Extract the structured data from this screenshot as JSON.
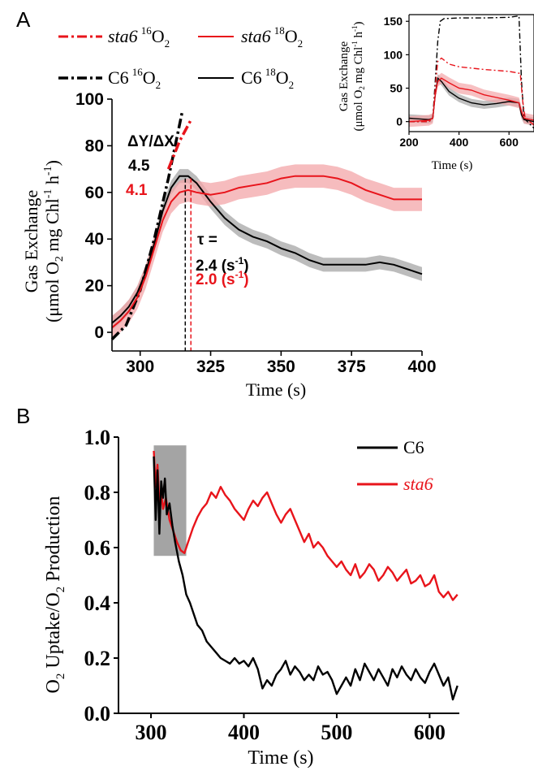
{
  "panels": {
    "a_letter": "A",
    "b_letter": "B"
  },
  "colors": {
    "c6": "#000000",
    "sta6": "#e8141b",
    "sta6_band": "#f3a5a8",
    "c6_band": "#a6a6a6",
    "shade_box": "#9a9a9a"
  },
  "legend_a": {
    "sta6_16_name": "sta6",
    "sta6_16_iso": "16",
    "sta6_16_gas": "O",
    "sta6_16_sub": "2",
    "sta6_18_name": "sta6",
    "sta6_18_iso": "18",
    "sta6_18_gas": "O",
    "sta6_18_sub": "2",
    "c6_16_name": "C6",
    "c6_16_iso": "16",
    "c6_16_gas": "O",
    "c6_16_sub": "2",
    "c6_18_name": "C6",
    "c6_18_iso": "18",
    "c6_18_gas": "O",
    "c6_18_sub": "2"
  },
  "annotations_a": {
    "slope_label": "ΔY/ΔX",
    "slope_c6": "4.5",
    "slope_sta6": "4.1",
    "tau_label": "τ =",
    "tau_c6": "2.4 (s",
    "tau_c6_exp": "-1",
    "tau_c6_close": ")",
    "tau_sta6": "2.0 (s",
    "tau_sta6_exp": "-1",
    "tau_sta6_close": ")"
  },
  "chart_data": [
    {
      "id": "A-main",
      "type": "line",
      "xlabel": "Time (s)",
      "ylabel": {
        "line1": "Gas Exchange",
        "line2_a": "(μmol O",
        "line2_sub": "2",
        "line2_b": " mg Chl",
        "line2_sup": "-1",
        "line2_c": " h",
        "line2_sup2": "-1",
        "line2_d": ")"
      },
      "xlim": [
        290,
        400
      ],
      "ylim": [
        -8,
        100
      ],
      "xticks": [
        "300",
        "325",
        "350",
        "375",
        "400"
      ],
      "yticks": [
        "0",
        "20",
        "40",
        "60",
        "80",
        "100"
      ],
      "xtick_values": [
        300,
        325,
        350,
        375,
        400
      ],
      "ytick_values": [
        0,
        20,
        40,
        60,
        80,
        100
      ],
      "vlines": [
        {
          "x": 316,
          "series": "C6"
        },
        {
          "x": 318,
          "series": "sta6"
        }
      ],
      "series": [
        {
          "key": "c6_16",
          "style": "dashdot",
          "x": [
            290,
            295,
            300,
            305,
            310,
            315
          ],
          "y": [
            -3,
            3,
            18,
            40,
            66,
            95
          ]
        },
        {
          "key": "sta6_16",
          "style": "dashdot",
          "x": [
            310,
            314,
            318
          ],
          "y": [
            70,
            82,
            91
          ]
        },
        {
          "key": "c6_18",
          "style": "solid",
          "band": 3,
          "x": [
            290,
            293,
            296,
            299,
            302,
            305,
            308,
            311,
            314,
            317,
            320,
            325,
            330,
            335,
            340,
            345,
            350,
            355,
            360,
            365,
            370,
            375,
            380,
            385,
            390,
            395,
            400
          ],
          "y": [
            4,
            7,
            11,
            17,
            26,
            38,
            52,
            62,
            67,
            67,
            64,
            56,
            49,
            44,
            41,
            39,
            36,
            34,
            31,
            29,
            29,
            29,
            29,
            30,
            29,
            27,
            25
          ]
        },
        {
          "key": "sta6_18",
          "style": "solid",
          "band": 5,
          "x": [
            290,
            293,
            296,
            299,
            302,
            305,
            308,
            311,
            314,
            317,
            320,
            325,
            330,
            335,
            340,
            345,
            350,
            355,
            360,
            365,
            370,
            375,
            380,
            385,
            390,
            395,
            400
          ],
          "y": [
            2,
            5,
            9,
            15,
            24,
            36,
            48,
            56,
            60,
            61,
            60,
            59,
            60,
            62,
            63,
            64,
            66,
            67,
            67,
            67,
            66,
            64,
            61,
            59,
            57,
            57,
            57
          ]
        }
      ]
    },
    {
      "id": "A-inset",
      "type": "line",
      "xlabel": "Time (s)",
      "ylabel": {
        "line1": "Gas Exchange",
        "line2_a": "(μmol O",
        "line2_sub": "2",
        "line2_b": " mg Chl",
        "line2_sup": "-1",
        "line2_c": " h",
        "line2_sup2": "-1",
        "line2_d": ")"
      },
      "xlim": [
        200,
        700
      ],
      "ylim": [
        -15,
        160
      ],
      "xticks": [
        "200",
        "400",
        "600"
      ],
      "yticks": [
        "0",
        "50",
        "100",
        "150"
      ],
      "xtick_values": [
        200,
        400,
        600
      ],
      "ytick_values": [
        0,
        50,
        100,
        150
      ],
      "series": [
        {
          "key": "c6_16",
          "style": "dashdot",
          "x": [
            200,
            280,
            295,
            305,
            315,
            325,
            340,
            400,
            500,
            600,
            640,
            650,
            660,
            700
          ],
          "y": [
            0,
            0,
            5,
            60,
            120,
            150,
            154,
            155,
            155,
            156,
            158,
            60,
            5,
            -10
          ]
        },
        {
          "key": "sta6_16",
          "style": "dashdot",
          "x": [
            200,
            280,
            295,
            305,
            315,
            330,
            360,
            400,
            500,
            600,
            645,
            655,
            665,
            700
          ],
          "y": [
            0,
            0,
            5,
            50,
            90,
            95,
            86,
            82,
            78,
            75,
            72,
            30,
            5,
            -5
          ]
        },
        {
          "key": "c6_18",
          "style": "solid",
          "band": 6,
          "x": [
            200,
            280,
            295,
            305,
            315,
            330,
            360,
            400,
            450,
            500,
            550,
            600,
            640,
            650,
            660,
            700
          ],
          "y": [
            5,
            3,
            5,
            40,
            65,
            60,
            45,
            35,
            28,
            25,
            27,
            30,
            28,
            10,
            3,
            0
          ]
        },
        {
          "key": "sta6_18",
          "style": "solid",
          "band": 8,
          "x": [
            200,
            280,
            295,
            305,
            315,
            330,
            360,
            400,
            450,
            500,
            550,
            600,
            640,
            650,
            660,
            700
          ],
          "y": [
            0,
            2,
            5,
            40,
            60,
            65,
            58,
            50,
            47,
            40,
            36,
            32,
            28,
            15,
            5,
            2
          ]
        }
      ]
    },
    {
      "id": "B",
      "type": "line",
      "xlabel": "Time (s)",
      "ylabel": {
        "line1_a": "O",
        "line1_sub": "2",
        "line1_b": " Uptake/O",
        "line1_sub2": "2",
        "line1_c": " Production"
      },
      "xlim": [
        265,
        632
      ],
      "ylim": [
        0,
        1.0
      ],
      "xticks": [
        "300",
        "400",
        "500",
        "600"
      ],
      "yticks": [
        "0.0",
        "0.2",
        "0.4",
        "0.6",
        "0.8",
        "1.0"
      ],
      "xtick_values": [
        300,
        400,
        500,
        600
      ],
      "ytick_values": [
        0,
        0.2,
        0.4,
        0.6,
        0.8,
        1.0
      ],
      "shaded_region": {
        "x": [
          303,
          338
        ],
        "y": [
          0.57,
          0.97
        ]
      },
      "legend": {
        "c6": "C6",
        "sta6": "sta6",
        "placement": "top-right"
      },
      "series": [
        {
          "name": "C6",
          "key": "c6",
          "x": [
            303,
            305,
            307,
            309,
            311,
            313,
            315,
            317,
            320,
            323,
            326,
            330,
            334,
            338,
            342,
            346,
            350,
            355,
            360,
            365,
            370,
            375,
            380,
            385,
            390,
            395,
            400,
            405,
            410,
            415,
            420,
            425,
            430,
            435,
            440,
            445,
            450,
            455,
            460,
            465,
            470,
            475,
            480,
            485,
            490,
            495,
            500,
            505,
            510,
            515,
            520,
            525,
            530,
            535,
            540,
            545,
            550,
            555,
            560,
            565,
            570,
            575,
            580,
            585,
            590,
            595,
            600,
            605,
            610,
            615,
            620,
            625,
            630
          ],
          "y": [
            0.93,
            0.7,
            0.88,
            0.65,
            0.84,
            0.78,
            0.85,
            0.72,
            0.76,
            0.68,
            0.62,
            0.55,
            0.5,
            0.43,
            0.4,
            0.36,
            0.32,
            0.3,
            0.26,
            0.24,
            0.22,
            0.2,
            0.19,
            0.18,
            0.2,
            0.18,
            0.19,
            0.17,
            0.2,
            0.16,
            0.09,
            0.12,
            0.1,
            0.14,
            0.16,
            0.19,
            0.14,
            0.17,
            0.15,
            0.12,
            0.14,
            0.12,
            0.17,
            0.14,
            0.15,
            0.12,
            0.07,
            0.1,
            0.13,
            0.1,
            0.16,
            0.12,
            0.18,
            0.15,
            0.12,
            0.16,
            0.13,
            0.1,
            0.16,
            0.13,
            0.17,
            0.14,
            0.12,
            0.16,
            0.13,
            0.11,
            0.15,
            0.18,
            0.14,
            0.1,
            0.13,
            0.05,
            0.1
          ]
        },
        {
          "name": "sta6",
          "key": "sta6",
          "x": [
            303,
            305,
            307,
            309,
            311,
            313,
            316,
            320,
            324,
            328,
            332,
            336,
            340,
            345,
            350,
            355,
            360,
            365,
            370,
            375,
            380,
            385,
            390,
            395,
            400,
            405,
            410,
            415,
            420,
            425,
            430,
            435,
            440,
            445,
            450,
            455,
            460,
            465,
            470,
            475,
            480,
            485,
            490,
            495,
            500,
            505,
            510,
            515,
            520,
            525,
            530,
            535,
            540,
            545,
            550,
            555,
            560,
            565,
            570,
            575,
            580,
            585,
            590,
            595,
            600,
            605,
            610,
            615,
            620,
            625,
            630
          ],
          "y": [
            0.95,
            0.82,
            0.9,
            0.76,
            0.8,
            0.74,
            0.78,
            0.7,
            0.66,
            0.62,
            0.59,
            0.58,
            0.62,
            0.67,
            0.71,
            0.74,
            0.76,
            0.8,
            0.78,
            0.82,
            0.79,
            0.77,
            0.74,
            0.72,
            0.7,
            0.74,
            0.77,
            0.75,
            0.78,
            0.8,
            0.76,
            0.72,
            0.69,
            0.72,
            0.74,
            0.7,
            0.66,
            0.62,
            0.65,
            0.6,
            0.62,
            0.6,
            0.57,
            0.55,
            0.53,
            0.55,
            0.52,
            0.5,
            0.54,
            0.49,
            0.51,
            0.54,
            0.52,
            0.48,
            0.5,
            0.53,
            0.51,
            0.48,
            0.5,
            0.52,
            0.47,
            0.48,
            0.5,
            0.46,
            0.47,
            0.5,
            0.44,
            0.42,
            0.44,
            0.41,
            0.43
          ]
        }
      ]
    }
  ]
}
